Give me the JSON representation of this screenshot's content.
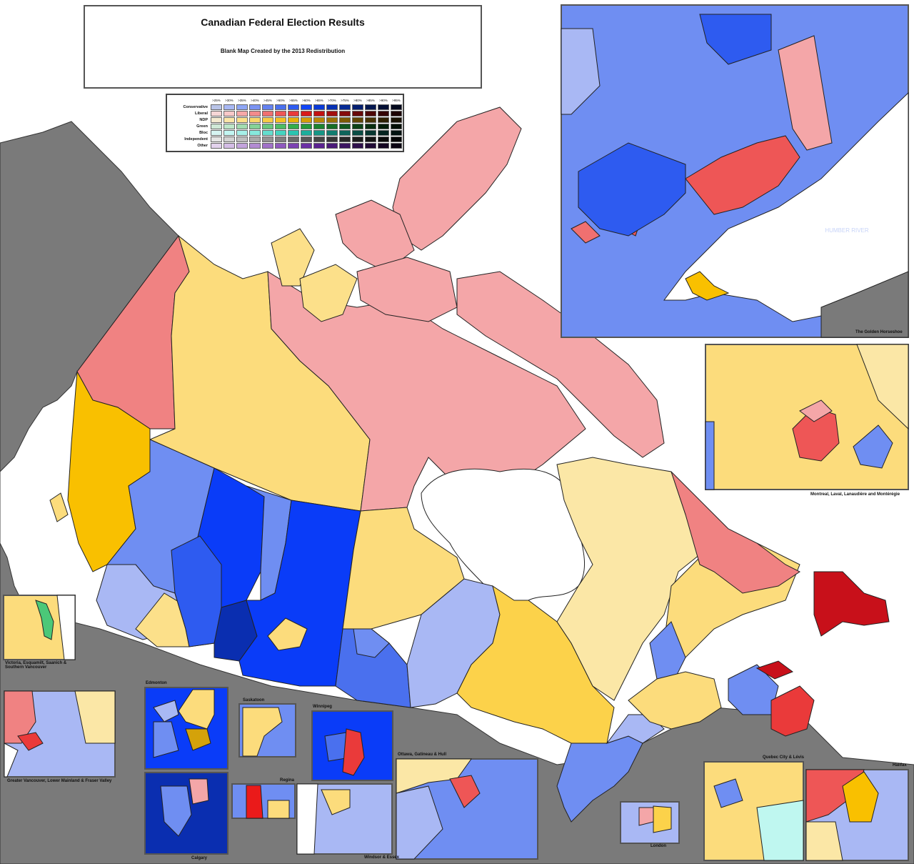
{
  "title": "Canadian Federal Election Results",
  "subtitle": "Blank Map Created by the 2013 Redistribution",
  "legend": {
    "thresholds": [
      ">25%",
      ">30%",
      ">35%",
      ">40%",
      ">45%",
      ">50%",
      ">55%",
      ">60%",
      ">65%",
      ">70%",
      ">75%",
      ">80%",
      ">85%",
      ">90%",
      ">95%"
    ],
    "parties": [
      {
        "name": "Conservative",
        "colors": [
          "#b9c4e8",
          "#a8b8f4",
          "#8fa6f5",
          "#7a93f2",
          "#6482f0",
          "#4a70ee",
          "#2e5bf0",
          "#1146f7",
          "#0a3ad8",
          "#0731b4",
          "#062a94",
          "#051f70",
          "#04174f",
          "#030f34",
          "#02081c"
        ]
      },
      {
        "name": "Liberal",
        "colors": [
          "#f6d6d6",
          "#f8c8c8",
          "#f6a8a8",
          "#f38b8b",
          "#f07070",
          "#ee5656",
          "#ea3a3a",
          "#d81a1a",
          "#c21212",
          "#a30f0f",
          "#850c0c",
          "#680909",
          "#4d0707",
          "#340505",
          "#1c0303"
        ]
      },
      {
        "name": "NDP",
        "colors": [
          "#f4ead0",
          "#fbe6a8",
          "#fce08a",
          "#fad66a",
          "#f7cb46",
          "#f5c023",
          "#e9b00a",
          "#d49d08",
          "#b98707",
          "#9b7106",
          "#7d5a05",
          "#604504",
          "#463203",
          "#2e2102",
          "#191201"
        ]
      },
      {
        "name": "Green",
        "colors": [
          "#cfe8d6",
          "#bde6c8",
          "#a2dcb0",
          "#86d297",
          "#68c77c",
          "#4cbc63",
          "#33ad4b",
          "#249a3a",
          "#1c842f",
          "#166e27",
          "#11581f",
          "#0c4217",
          "#082e10",
          "#051e0a",
          "#020f05"
        ]
      },
      {
        "name": "Bloc",
        "colors": [
          "#d6f4f2",
          "#c2f6f2",
          "#a6f0e8",
          "#86e8dc",
          "#64dece",
          "#44d4c0",
          "#2ac4b0",
          "#1cae9c",
          "#169686",
          "#117d70",
          "#0d645a",
          "#094c44",
          "#063630",
          "#04231f",
          "#021210"
        ]
      },
      {
        "name": "Independent",
        "colors": [
          "#e4e4e4",
          "#d2d2d2",
          "#bebebe",
          "#a8a8a8",
          "#939393",
          "#7e7e7e",
          "#6a6a6a",
          "#575757",
          "#464646",
          "#363636",
          "#282828",
          "#1c1c1c",
          "#121212",
          "#0a0a0a",
          "#040404"
        ]
      },
      {
        "name": "Other",
        "colors": [
          "#e2d2ec",
          "#d4bde6",
          "#c3a4dc",
          "#b28bd2",
          "#a072c8",
          "#8e59be",
          "#7c42b2",
          "#6b2fa4",
          "#5a2290",
          "#4a1a78",
          "#3b1460",
          "#2d0f4a",
          "#200a35",
          "#140622",
          "#0a0311"
        ]
      }
    ]
  },
  "insets": {
    "golden_horseshoe": "The Golden Horseshoe",
    "humber_river": "HUMBER RIVER",
    "montreal": "Montreal, Laval, Lanaudière and Montérégie",
    "victoria": "Victoria, Esquamilt, Saanich & Southern Vancouver",
    "vancouver": "Greater Vancouver, Lower Mainland & Fraser Valley",
    "edmonton": "Edmonton",
    "calgary": "Calgary",
    "saskatoon": "Saskatoon",
    "regina": "Regina",
    "winnipeg": "Winnipeg",
    "windsor": "Windsor & Essex",
    "ottawa": "Ottawa, Gatineau & Hull",
    "london": "London",
    "quebec_city": "Quebec City & Lévis",
    "halifax": "Halifax"
  },
  "colors": {
    "background_land_foreign": "#7a7a7a",
    "water": "#ffffff",
    "liberal_light": "#f4a6a8",
    "liberal_mid": "#f08282",
    "liberal_dark": "#c8101a",
    "ndp_light": "#fbe7a6",
    "ndp_mid": "#fcdc7c",
    "ndp_dark": "#f9c000",
    "con_light": "#a9b8f4",
    "con_mid": "#6f8ef2",
    "con_dark": "#0a3cf8",
    "con_darkest": "#0a2eb0",
    "bloc": "#bff7f0",
    "green": "#4bc878"
  }
}
